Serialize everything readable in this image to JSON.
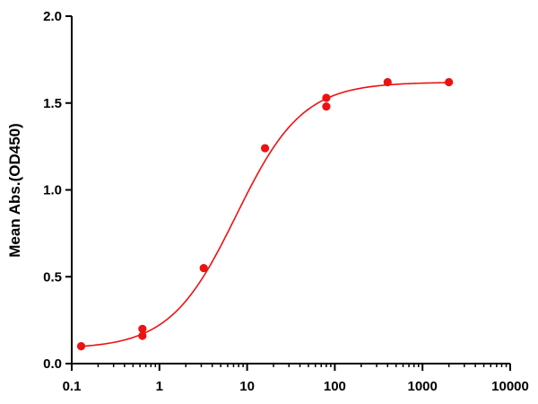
{
  "chart_data": {
    "type": "scatter",
    "title": "",
    "xlabel": "",
    "ylabel": "Mean Abs.(OD450)",
    "x_scale": "log",
    "xlim": [
      0.1,
      10000
    ],
    "ylim": [
      0,
      2.0
    ],
    "x_ticks": [
      0.1,
      1,
      10,
      100,
      1000,
      10000
    ],
    "x_tick_labels": [
      "0.1",
      "1",
      "10",
      "100",
      "1000",
      "10000"
    ],
    "y_ticks": [
      0,
      0.5,
      1.0,
      1.5,
      2.0
    ],
    "y_tick_labels": [
      "0.0",
      "0.5",
      "1.0",
      "1.5",
      "2.0"
    ],
    "grid": false,
    "legend": "none",
    "color": "#ee1111",
    "points": [
      {
        "x": 0.128,
        "y": 0.1
      },
      {
        "x": 0.64,
        "y": 0.16
      },
      {
        "x": 0.64,
        "y": 0.2
      },
      {
        "x": 3.2,
        "y": 0.55
      },
      {
        "x": 16,
        "y": 1.24
      },
      {
        "x": 80,
        "y": 1.48
      },
      {
        "x": 80,
        "y": 1.53
      },
      {
        "x": 400,
        "y": 1.62
      },
      {
        "x": 2000,
        "y": 1.62
      }
    ],
    "fit": {
      "model": "4PL",
      "bottom": 0.085,
      "top": 1.62,
      "ec50": 7.5,
      "hill": 1.15,
      "x_range": [
        0.128,
        2000
      ]
    }
  }
}
